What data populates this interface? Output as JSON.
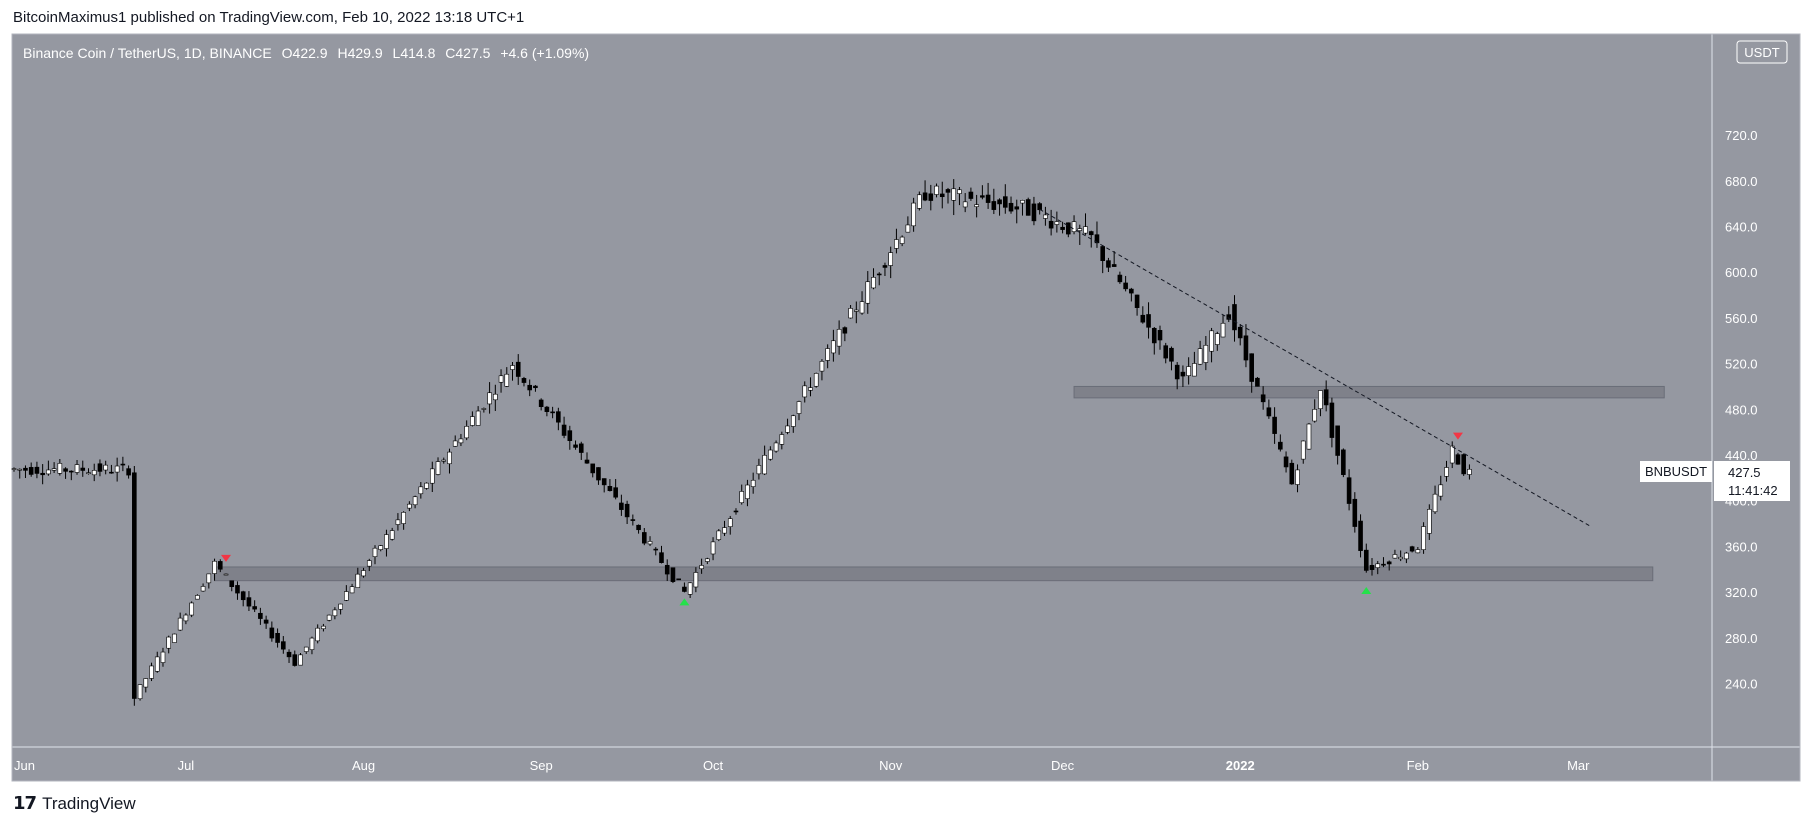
{
  "publisher_line": "BitcoinMaximus1 published on TradingView.com, Feb 10, 2022 13:18 UTC+1",
  "brand": {
    "logo": "17",
    "name": "TradingView"
  },
  "legend": {
    "symbol": "Binance Coin / TetherUS, 1D, BINANCE",
    "o_label": "O",
    "o_value": "422.9",
    "h_label": "H",
    "h_value": "429.9",
    "l_label": "L",
    "l_value": "414.8",
    "c_label": "C",
    "c_value": "427.5",
    "change": "+4.6 (+1.09%)"
  },
  "currency_badge": "USDT",
  "price_tag": {
    "ticker": "BNBUSDT",
    "price": "427.5",
    "countdown": "11:41:42"
  },
  "colors": {
    "background": "#9598a1",
    "up": "#ffffff",
    "down": "#000000",
    "red_marker": "#f23645",
    "green_marker": "#26e04b"
  },
  "chart_data": {
    "type": "candlestick",
    "title": "Binance Coin / TetherUS, 1D, BINANCE",
    "xlabel": "",
    "ylabel": "",
    "y_ticks": [
      "720.0",
      "680.0",
      "640.0",
      "600.0",
      "560.0",
      "520.0",
      "480.0",
      "440.0",
      "400.0",
      "360.0",
      "320.0",
      "280.0",
      "240.0"
    ],
    "x_ticks": [
      {
        "label": "Jun",
        "day": 0
      },
      {
        "label": "Jul",
        "day": 30
      },
      {
        "label": "Aug",
        "day": 61
      },
      {
        "label": "Sep",
        "day": 92
      },
      {
        "label": "Oct",
        "day": 122
      },
      {
        "label": "Nov",
        "day": 153
      },
      {
        "label": "Dec",
        "day": 183
      },
      {
        "label": "2022",
        "day": 214
      },
      {
        "label": "Feb",
        "day": 245
      },
      {
        "label": "Mar",
        "day": 273
      }
    ],
    "last_price": 427.5,
    "key_points": [
      {
        "day": 22,
        "price": 228
      },
      {
        "day": 36,
        "price": 345
      },
      {
        "day": 50,
        "price": 258
      },
      {
        "day": 88,
        "price": 520
      },
      {
        "day": 118,
        "price": 320
      },
      {
        "day": 160,
        "price": 670
      },
      {
        "day": 178,
        "price": 655
      },
      {
        "day": 189,
        "price": 630
      },
      {
        "day": 205,
        "price": 505
      },
      {
        "day": 213,
        "price": 565
      },
      {
        "day": 224,
        "price": 415
      },
      {
        "day": 229,
        "price": 500
      },
      {
        "day": 237,
        "price": 340
      },
      {
        "day": 246,
        "price": 360
      },
      {
        "day": 252,
        "price": 445
      },
      {
        "day": 254,
        "price": 427.5
      }
    ],
    "zones": [
      {
        "from_day": 35,
        "to_day": 286,
        "low": 330,
        "high": 342
      },
      {
        "from_day": 185,
        "to_day": 288,
        "low": 490,
        "high": 500
      }
    ],
    "trendline": {
      "start": {
        "day": 179,
        "price": 655
      },
      "end": {
        "day": 275,
        "price": 378
      }
    },
    "markers": [
      {
        "type": "down",
        "day": 37,
        "price": 350,
        "color": "#f23645"
      },
      {
        "type": "up",
        "day": 117,
        "price": 311,
        "color": "#26e04b"
      },
      {
        "type": "up",
        "day": 236,
        "price": 321,
        "color": "#26e04b"
      },
      {
        "type": "down",
        "day": 252,
        "price": 457,
        "color": "#f23645"
      }
    ]
  }
}
